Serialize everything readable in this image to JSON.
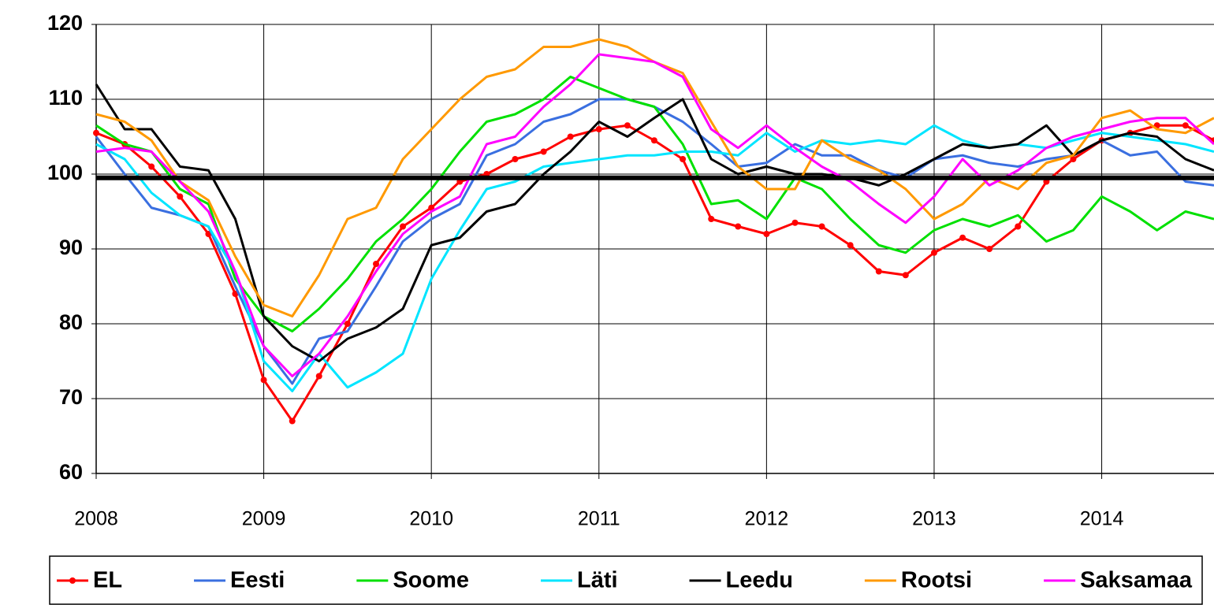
{
  "chart_data": {
    "type": "line",
    "x": [
      2008,
      2008.17,
      2008.33,
      2008.5,
      2008.67,
      2008.83,
      2009,
      2009.17,
      2009.33,
      2009.5,
      2009.67,
      2009.83,
      2010,
      2010.17,
      2010.33,
      2010.5,
      2010.67,
      2010.83,
      2011,
      2011.17,
      2011.33,
      2011.5,
      2011.67,
      2011.83,
      2012,
      2012.17,
      2012.33,
      2012.5,
      2012.67,
      2012.83,
      2013,
      2013.17,
      2013.33,
      2013.5,
      2013.67,
      2013.83,
      2014,
      2014.17,
      2014.33,
      2014.5,
      2014.67
    ],
    "series": [
      {
        "name": "EL",
        "color": "#ff0000",
        "markers": true,
        "values": [
          105.5,
          104,
          101,
          97,
          92,
          84,
          72.5,
          67,
          73,
          80,
          88,
          93,
          95.5,
          99,
          100,
          102,
          103,
          105,
          106,
          106.5,
          104.5,
          102,
          94,
          93,
          92,
          93.5,
          93,
          90.5,
          87,
          86.5,
          89.5,
          91.5,
          90,
          93,
          99,
          102,
          104.5,
          105.5,
          106.5,
          106.5,
          104.5
        ]
      },
      {
        "name": "Eesti",
        "color": "#3a6fe0",
        "values": [
          105,
          100,
          95.5,
          94.5,
          93,
          85,
          77,
          72,
          78,
          79,
          85,
          91,
          94,
          96,
          102.5,
          104,
          107,
          108,
          110,
          110,
          109,
          107,
          104,
          101,
          101.5,
          104,
          102.5,
          102.5,
          100.5,
          99.5,
          102,
          102.5,
          101.5,
          101,
          102,
          102.5,
          104.5,
          102.5,
          103,
          99,
          98.5
        ]
      },
      {
        "name": "Soome",
        "color": "#00e000",
        "values": [
          106.5,
          104,
          103,
          98,
          96,
          86,
          81,
          79,
          82,
          86,
          91,
          94,
          98,
          103,
          107,
          108,
          110,
          113,
          111.5,
          110,
          109,
          104,
          96,
          96.5,
          94,
          99.5,
          98,
          94,
          90.5,
          89.5,
          92.5,
          94,
          93,
          94.5,
          91,
          92.5,
          97,
          95,
          92.5,
          95,
          94
        ]
      },
      {
        "name": "Läti",
        "color": "#00e5ff",
        "values": [
          104,
          102,
          97.5,
          94.5,
          93,
          87,
          75,
          71,
          76,
          71.5,
          73.5,
          76,
          86,
          92.5,
          98,
          99,
          101,
          101.5,
          102,
          102.5,
          102.5,
          103,
          103,
          102.5,
          105.5,
          103,
          104.5,
          104,
          104.5,
          104,
          106.5,
          104.5,
          103.5,
          104,
          103.5,
          104.5,
          105.5,
          105,
          104.5,
          104,
          103
        ]
      },
      {
        "name": "Leedu",
        "color": "#000000",
        "values": [
          112,
          106,
          106,
          101,
          100.5,
          94,
          81,
          77,
          75,
          78,
          79.5,
          82,
          90.5,
          91.5,
          95,
          96,
          100,
          103,
          107,
          105,
          107.5,
          110,
          102,
          100,
          101,
          100,
          100,
          99.5,
          98.5,
          100,
          102,
          104,
          103.5,
          104,
          106.5,
          102.5,
          104.5,
          105.5,
          105,
          102,
          100.5
        ]
      },
      {
        "name": "Rootsi",
        "color": "#ff9900",
        "values": [
          108,
          107,
          104.5,
          99,
          96.5,
          89,
          82.5,
          81,
          86.5,
          94,
          95.5,
          102,
          106,
          110,
          113,
          114,
          117,
          117,
          118,
          117,
          115,
          113.5,
          107,
          101,
          98,
          98,
          104.5,
          102,
          100.5,
          98,
          94,
          96,
          99.5,
          98,
          101.5,
          102.5,
          107.5,
          108.5,
          106,
          105.5,
          107.5
        ]
      },
      {
        "name": "Saksamaa",
        "color": "#ff00ff",
        "values": [
          103,
          103.5,
          103,
          99,
          95,
          87,
          77,
          73,
          76,
          81,
          87,
          92,
          95,
          97,
          104,
          105,
          109,
          112,
          116,
          115.5,
          115,
          113,
          106,
          103.5,
          106.5,
          103.5,
          101,
          99,
          96,
          93.5,
          97,
          102,
          98.5,
          100.5,
          103.5,
          105,
          106,
          107,
          107.5,
          107.5,
          104
        ]
      }
    ],
    "xlim": [
      2008,
      2014.67
    ],
    "xticks": [
      2008,
      2009,
      2010,
      2011,
      2012,
      2013,
      2014
    ],
    "ylim": [
      60,
      120
    ],
    "yticks": [
      60,
      70,
      80,
      90,
      100,
      110,
      120
    ],
    "reference_line": 99.5,
    "grid": true,
    "legend": "bottom"
  }
}
